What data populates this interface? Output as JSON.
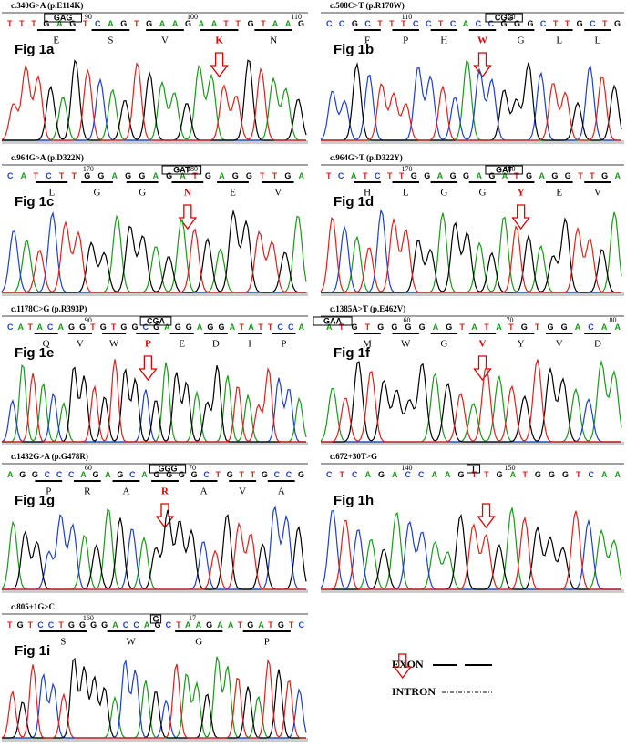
{
  "panels": [
    {
      "mutation": "c.340G>A (p.E114K)",
      "fig": "Fig 1a",
      "sequence": "TTTGAGTCAGTGAAGAATTGTAAG",
      "box": "GAG",
      "positions": [
        "90",
        "100",
        "110"
      ],
      "amino_acids": [
        "E",
        "S",
        "V",
        "K",
        "N"
      ],
      "mutant_index": 3
    },
    {
      "mutation": "c.508C>T (p.R170W)",
      "fig": "Fig 1b",
      "sequence": "CCGCTTTCCTCACCGGGCTTGCTG",
      "box": "CGG",
      "positions": [
        "110",
        "120"
      ],
      "amino_acids": [
        "F",
        "P",
        "H",
        "W",
        "G",
        "L",
        "L"
      ],
      "mutant_index": 3
    },
    {
      "mutation": "c.964G>A (p.D322N)",
      "fig": "Fig 1c",
      "sequence": "CATCTTGGAGGAGATGAGGTTGA",
      "box": "GAT",
      "positions": [
        "170",
        "180"
      ],
      "amino_acids": [
        "L",
        "G",
        "G",
        "N",
        "E",
        "V"
      ],
      "mutant_index": 3
    },
    {
      "mutation": "c.964G>T (p.D322Y)",
      "fig": "Fig 1d",
      "sequence": "TCATCTTGGAGGAGATGAGGTTGA",
      "box": "GAT",
      "positions": [
        "170",
        "180"
      ],
      "amino_acids": [
        "H",
        "L",
        "G",
        "G",
        "Y",
        "E",
        "V"
      ],
      "mutant_index": 4
    },
    {
      "mutation": "c.1178C>G (p.R393P)",
      "fig": "Fig 1e",
      "sequence": "CATACAGGTGTGGCGAGGAGGATATTCCA",
      "box": "CGA",
      "positions": [
        "90"
      ],
      "amino_acids": [
        "Q",
        "V",
        "W",
        "P",
        "E",
        "D",
        "I",
        "P"
      ],
      "mutant_index": 3
    },
    {
      "mutation": "c.1385A>T (p.E462V)",
      "fig": "Fig 1f",
      "sequence": "ATGTGGGGAGTATATGTGGACAA",
      "box": "GAA",
      "positions": [
        "60",
        "70",
        "80"
      ],
      "amino_acids": [
        "M",
        "W",
        "G",
        "V",
        "Y",
        "V",
        "D"
      ],
      "mutant_index": 3
    },
    {
      "mutation": "c.1432G>A (p.G478R)",
      "fig": "Fig 1g",
      "sequence": "AGGCCCAGAGCAGGGGCTGTTGCCG",
      "box": "GGG",
      "positions": [
        "60",
        "70"
      ],
      "amino_acids": [
        "P",
        "R",
        "A",
        "R",
        "A",
        "V",
        "A"
      ],
      "mutant_index": 3
    },
    {
      "mutation": "c.672+30T>G",
      "fig": "Fig 1h",
      "sequence": "CTCAGACCAAGTTGATGGGTCAA",
      "box": "T",
      "positions": [
        "140",
        "150"
      ],
      "amino_acids": [],
      "mutant_index": 12
    },
    {
      "mutation": "c.805+1G>C",
      "fig": "Fig 1i",
      "sequence": "TGTCCTGGGGACCAGCTAAGAATGATGTC",
      "box": "G",
      "positions": [
        "160",
        "17"
      ],
      "amino_acids": [
        "S",
        "W",
        "G",
        "P"
      ],
      "mutant_index": 5
    }
  ],
  "legend": {
    "exon": "EXON",
    "intron": "INTRON"
  }
}
